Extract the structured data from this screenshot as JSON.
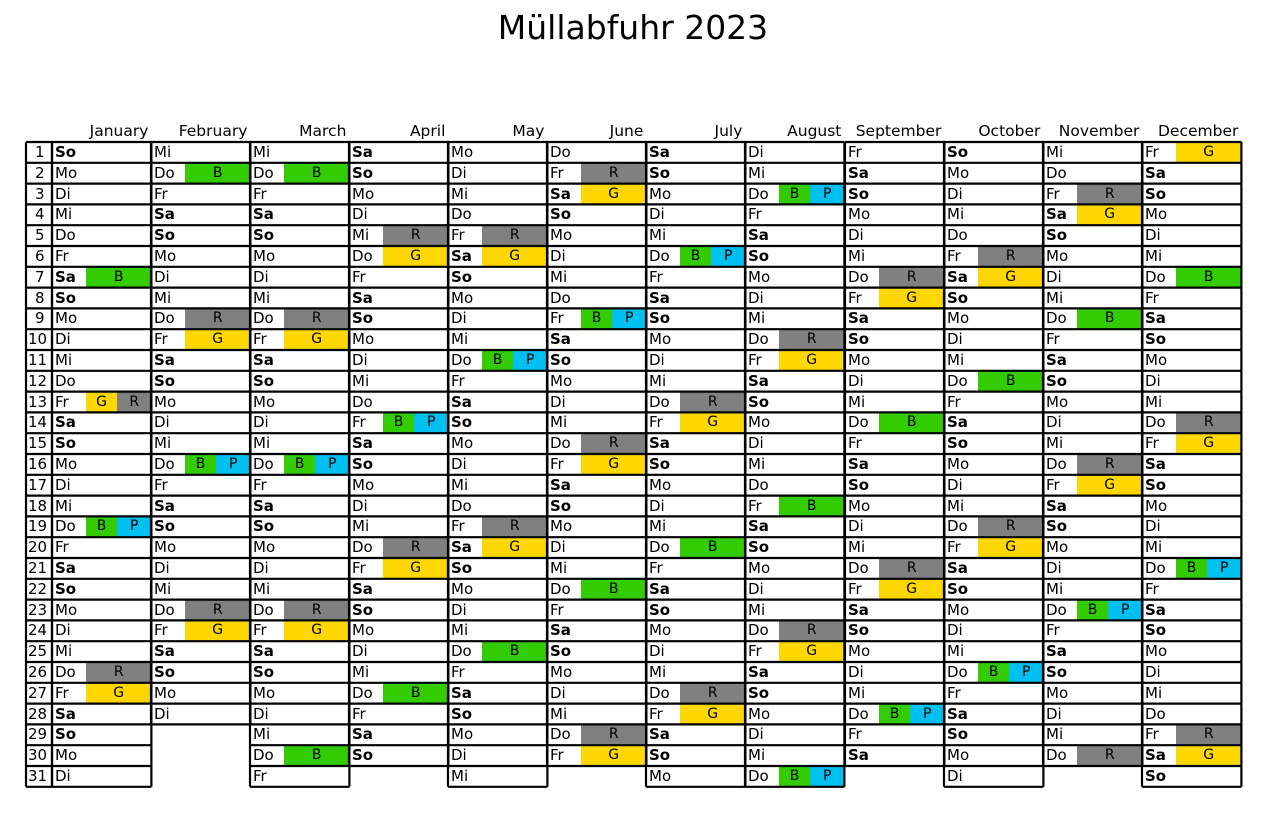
{
  "title": "Müllabfuhr 2023",
  "colors": {
    "R": "#808080",
    "G": "#FFD700",
    "B": "#33CC00",
    "P": "#00C0F0"
  },
  "months": [
    {
      "name": "January",
      "days": [
        "So",
        "Mo",
        "Di",
        "Mi",
        "Do",
        "Fr",
        "Sa",
        "So",
        "Mo",
        "Di",
        "Mi",
        "Do",
        "Fr",
        "Sa",
        "So",
        "Mo",
        "Di",
        "Mi",
        "Do",
        "Fr",
        "Sa",
        "So",
        "Mo",
        "Di",
        "Mi",
        "Do",
        "Fr",
        "Sa",
        "So",
        "Mo",
        "Di"
      ],
      "pickups": {
        "7": [
          "B"
        ],
        "13": [
          "G",
          "R"
        ],
        "19": [
          "B",
          "P"
        ],
        "26": [
          "R"
        ],
        "27": [
          "G"
        ]
      }
    },
    {
      "name": "February",
      "days": [
        "Mi",
        "Do",
        "Fr",
        "Sa",
        "So",
        "Mo",
        "Di",
        "Mi",
        "Do",
        "Fr",
        "Sa",
        "So",
        "Mo",
        "Di",
        "Mi",
        "Do",
        "Fr",
        "Sa",
        "So",
        "Mo",
        "Di",
        "Mi",
        "Do",
        "Fr",
        "Sa",
        "So",
        "Mo",
        "Di"
      ],
      "pickups": {
        "2": [
          "B"
        ],
        "9": [
          "R"
        ],
        "10": [
          "G"
        ],
        "16": [
          "B",
          "P"
        ],
        "23": [
          "R"
        ],
        "24": [
          "G"
        ]
      }
    },
    {
      "name": "March",
      "days": [
        "Mi",
        "Do",
        "Fr",
        "Sa",
        "So",
        "Mo",
        "Di",
        "Mi",
        "Do",
        "Fr",
        "Sa",
        "So",
        "Mo",
        "Di",
        "Mi",
        "Do",
        "Fr",
        "Sa",
        "So",
        "Mo",
        "Di",
        "Mi",
        "Do",
        "Fr",
        "Sa",
        "So",
        "Mo",
        "Di",
        "Mi",
        "Do",
        "Fr"
      ],
      "pickups": {
        "2": [
          "B"
        ],
        "9": [
          "R"
        ],
        "10": [
          "G"
        ],
        "16": [
          "B",
          "P"
        ],
        "23": [
          "R"
        ],
        "24": [
          "G"
        ],
        "30": [
          "B"
        ]
      }
    },
    {
      "name": "April",
      "days": [
        "Sa",
        "So",
        "Mo",
        "Di",
        "Mi",
        "Do",
        "Fr",
        "Sa",
        "So",
        "Mo",
        "Di",
        "Mi",
        "Do",
        "Fr",
        "Sa",
        "So",
        "Mo",
        "Di",
        "Mi",
        "Do",
        "Fr",
        "Sa",
        "So",
        "Mo",
        "Di",
        "Mi",
        "Do",
        "Fr",
        "Sa",
        "So"
      ],
      "pickups": {
        "5": [
          "R"
        ],
        "6": [
          "G"
        ],
        "14": [
          "B",
          "P"
        ],
        "20": [
          "R"
        ],
        "21": [
          "G"
        ],
        "27": [
          "B"
        ]
      }
    },
    {
      "name": "May",
      "days": [
        "Mo",
        "Di",
        "Mi",
        "Do",
        "Fr",
        "Sa",
        "So",
        "Mo",
        "Di",
        "Mi",
        "Do",
        "Fr",
        "Sa",
        "So",
        "Mo",
        "Di",
        "Mi",
        "Do",
        "Fr",
        "Sa",
        "So",
        "Mo",
        "Di",
        "Mi",
        "Do",
        "Fr",
        "Sa",
        "So",
        "Mo",
        "Di",
        "Mi"
      ],
      "pickups": {
        "5": [
          "R"
        ],
        "6": [
          "G"
        ],
        "11": [
          "B",
          "P"
        ],
        "19": [
          "R"
        ],
        "20": [
          "G"
        ],
        "25": [
          "B"
        ]
      }
    },
    {
      "name": "June",
      "days": [
        "Do",
        "Fr",
        "Sa",
        "So",
        "Mo",
        "Di",
        "Mi",
        "Do",
        "Fr",
        "Sa",
        "So",
        "Mo",
        "Di",
        "Mi",
        "Do",
        "Fr",
        "Sa",
        "So",
        "Mo",
        "Di",
        "Mi",
        "Do",
        "Fr",
        "Sa",
        "So",
        "Mo",
        "Di",
        "Mi",
        "Do",
        "Fr"
      ],
      "pickups": {
        "2": [
          "R"
        ],
        "3": [
          "G"
        ],
        "9": [
          "B",
          "P"
        ],
        "15": [
          "R"
        ],
        "16": [
          "G"
        ],
        "22": [
          "B"
        ],
        "29": [
          "R"
        ],
        "30": [
          "G"
        ]
      }
    },
    {
      "name": "July",
      "days": [
        "Sa",
        "So",
        "Mo",
        "Di",
        "Mi",
        "Do",
        "Fr",
        "Sa",
        "So",
        "Mo",
        "Di",
        "Mi",
        "Do",
        "Fr",
        "Sa",
        "So",
        "Mo",
        "Di",
        "Mi",
        "Do",
        "Fr",
        "Sa",
        "So",
        "Mo",
        "Di",
        "Mi",
        "Do",
        "Fr",
        "Sa",
        "So",
        "Mo"
      ],
      "pickups": {
        "6": [
          "B",
          "P"
        ],
        "13": [
          "R"
        ],
        "14": [
          "G"
        ],
        "20": [
          "B"
        ],
        "27": [
          "R"
        ],
        "28": [
          "G"
        ]
      }
    },
    {
      "name": "August",
      "days": [
        "Di",
        "Mi",
        "Do",
        "Fr",
        "Sa",
        "So",
        "Mo",
        "Di",
        "Mi",
        "Do",
        "Fr",
        "Sa",
        "So",
        "Mo",
        "Di",
        "Mi",
        "Do",
        "Fr",
        "Sa",
        "So",
        "Mo",
        "Di",
        "Mi",
        "Do",
        "Fr",
        "Sa",
        "So",
        "Mo",
        "Di",
        "Mi",
        "Do"
      ],
      "pickups": {
        "3": [
          "B",
          "P"
        ],
        "10": [
          "R"
        ],
        "11": [
          "G"
        ],
        "18": [
          "B"
        ],
        "24": [
          "R"
        ],
        "25": [
          "G"
        ],
        "31": [
          "B",
          "P"
        ]
      }
    },
    {
      "name": "September",
      "days": [
        "Fr",
        "Sa",
        "So",
        "Mo",
        "Di",
        "Mi",
        "Do",
        "Fr",
        "Sa",
        "So",
        "Mo",
        "Di",
        "Mi",
        "Do",
        "Fr",
        "Sa",
        "So",
        "Mo",
        "Di",
        "Mi",
        "Do",
        "Fr",
        "Sa",
        "So",
        "Mo",
        "Di",
        "Mi",
        "Do",
        "Fr",
        "Sa"
      ],
      "pickups": {
        "7": [
          "R"
        ],
        "8": [
          "G"
        ],
        "14": [
          "B"
        ],
        "21": [
          "R"
        ],
        "22": [
          "G"
        ],
        "28": [
          "B",
          "P"
        ]
      }
    },
    {
      "name": "October",
      "days": [
        "So",
        "Mo",
        "Di",
        "Mi",
        "Do",
        "Fr",
        "Sa",
        "So",
        "Mo",
        "Di",
        "Mi",
        "Do",
        "Fr",
        "Sa",
        "So",
        "Mo",
        "Di",
        "Mi",
        "Do",
        "Fr",
        "Sa",
        "So",
        "Mo",
        "Di",
        "Mi",
        "Do",
        "Fr",
        "Sa",
        "So",
        "Mo",
        "Di"
      ],
      "pickups": {
        "6": [
          "R"
        ],
        "7": [
          "G"
        ],
        "12": [
          "B"
        ],
        "19": [
          "R"
        ],
        "20": [
          "G"
        ],
        "26": [
          "B",
          "P"
        ]
      }
    },
    {
      "name": "November",
      "days": [
        "Mi",
        "Do",
        "Fr",
        "Sa",
        "So",
        "Mo",
        "Di",
        "Mi",
        "Do",
        "Fr",
        "Sa",
        "So",
        "Mo",
        "Di",
        "Mi",
        "Do",
        "Fr",
        "Sa",
        "So",
        "Mo",
        "Di",
        "Mi",
        "Do",
        "Fr",
        "Sa",
        "So",
        "Mo",
        "Di",
        "Mi",
        "Do"
      ],
      "pickups": {
        "3": [
          "R"
        ],
        "4": [
          "G"
        ],
        "9": [
          "B"
        ],
        "16": [
          "R"
        ],
        "17": [
          "G"
        ],
        "23": [
          "B",
          "P"
        ],
        "30": [
          "R"
        ]
      }
    },
    {
      "name": "December",
      "days": [
        "Fr",
        "Sa",
        "So",
        "Mo",
        "Di",
        "Mi",
        "Do",
        "Fr",
        "Sa",
        "So",
        "Mo",
        "Di",
        "Mi",
        "Do",
        "Fr",
        "Sa",
        "So",
        "Mo",
        "Di",
        "Mi",
        "Do",
        "Fr",
        "Sa",
        "So",
        "Mo",
        "Di",
        "Mi",
        "Do",
        "Fr",
        "Sa",
        "So"
      ],
      "pickups": {
        "1": [
          "G"
        ],
        "7": [
          "B"
        ],
        "14": [
          "R"
        ],
        "15": [
          "G"
        ],
        "21": [
          "B",
          "P"
        ],
        "29": [
          "R"
        ],
        "30": [
          "G"
        ]
      }
    }
  ]
}
